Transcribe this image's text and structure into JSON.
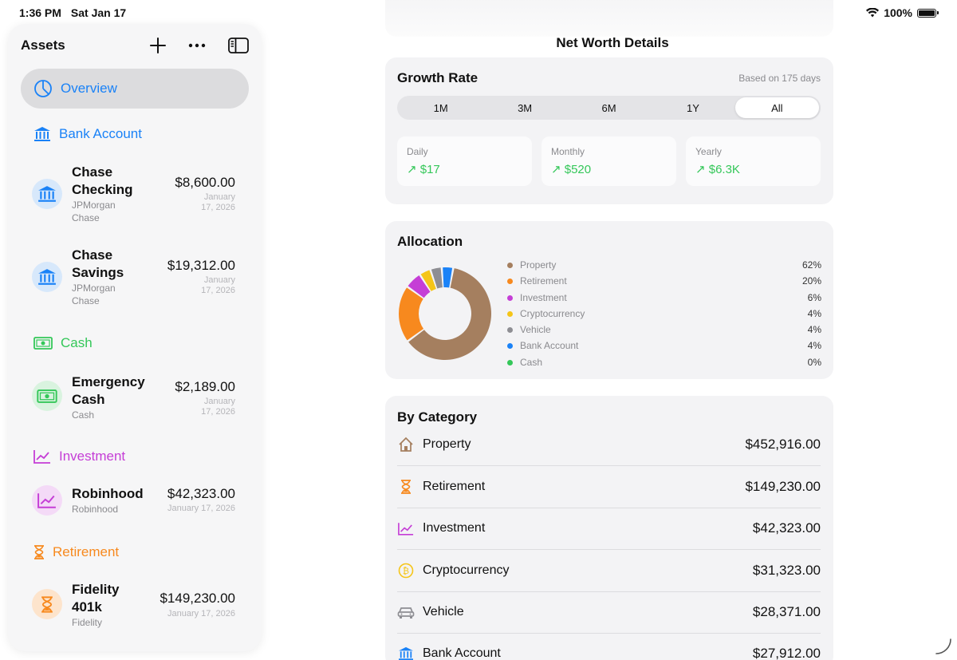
{
  "status": {
    "time": "1:36 PM",
    "date": "Sat Jan 17",
    "battery": "100%"
  },
  "sidebar": {
    "title": "Assets",
    "overview_label": "Overview",
    "sections": [
      {
        "label": "Bank Account",
        "color": "#1a82f7",
        "icon": "bank-icon"
      },
      {
        "label": "Cash",
        "color": "#34c759",
        "icon": "cash-icon"
      },
      {
        "label": "Investment",
        "color": "#c53ed6",
        "icon": "chart-line-icon"
      },
      {
        "label": "Retirement",
        "color": "#f7891e",
        "icon": "hourglass-icon"
      }
    ],
    "accounts": [
      {
        "name_line1": "Chase",
        "name_line2": "Checking",
        "institution_line1": "JPMorgan",
        "institution_line2": "Chase",
        "amount": "$8,600.00",
        "date_line1": "January",
        "date_line2": "17, 2026"
      },
      {
        "name_line1": "Chase",
        "name_line2": "Savings",
        "institution_line1": "JPMorgan",
        "institution_line2": "Chase",
        "amount": "$19,312.00",
        "date_line1": "January",
        "date_line2": "17, 2026"
      },
      {
        "name_line1": "Emergency",
        "name_line2": "Cash",
        "institution_line1": "Cash",
        "amount": "$2,189.00",
        "date_line1": "January",
        "date_line2": "17, 2026"
      },
      {
        "name_line1": "Robinhood",
        "institution_line1": "Robinhood",
        "amount": "$42,323.00",
        "date_line1": "January 17, 2026"
      },
      {
        "name_line1": "Fidelity",
        "name_line2": "401k",
        "institution_line1": "Fidelity",
        "amount": "$149,230.00",
        "date_line1": "January 17, 2026"
      }
    ]
  },
  "main": {
    "title": "Net Worth Details",
    "growth": {
      "title": "Growth Rate",
      "basis": "Based on 175 days",
      "ranges": [
        "1M",
        "3M",
        "6M",
        "1Y",
        "All"
      ],
      "selected": "All",
      "stats": [
        {
          "label": "Daily",
          "value": "↗ $17"
        },
        {
          "label": "Monthly",
          "value": "↗ $520"
        },
        {
          "label": "Yearly",
          "value": "↗ $6.3K"
        }
      ]
    },
    "allocation": {
      "title": "Allocation",
      "items": [
        {
          "label": "Property",
          "pct": "62%",
          "color": "#a57f5f"
        },
        {
          "label": "Retirement",
          "pct": "20%",
          "color": "#f7891e"
        },
        {
          "label": "Investment",
          "pct": "6%",
          "color": "#c53ed6"
        },
        {
          "label": "Cryptocurrency",
          "pct": "4%",
          "color": "#f5c518"
        },
        {
          "label": "Vehicle",
          "pct": "4%",
          "color": "#8e8e93"
        },
        {
          "label": "Bank Account",
          "pct": "4%",
          "color": "#1a82f7"
        },
        {
          "label": "Cash",
          "pct": "0%",
          "color": "#34c759"
        }
      ]
    },
    "by_category": {
      "title": "By Category",
      "rows": [
        {
          "name": "Property",
          "amount": "$452,916.00",
          "icon": "house-icon"
        },
        {
          "name": "Retirement",
          "amount": "$149,230.00",
          "icon": "hourglass-icon"
        },
        {
          "name": "Investment",
          "amount": "$42,323.00",
          "icon": "chart-line-icon"
        },
        {
          "name": "Cryptocurrency",
          "amount": "$31,323.00",
          "icon": "bitcoin-icon"
        },
        {
          "name": "Vehicle",
          "amount": "$28,371.00",
          "icon": "car-icon"
        },
        {
          "name": "Bank Account",
          "amount": "$27,912.00",
          "icon": "bank-icon"
        }
      ]
    }
  },
  "chart_data": {
    "type": "pie",
    "categories": [
      "Property",
      "Retirement",
      "Investment",
      "Cryptocurrency",
      "Vehicle",
      "Bank Account",
      "Cash"
    ],
    "values": [
      62,
      20,
      6,
      4,
      4,
      4,
      0
    ]
  }
}
